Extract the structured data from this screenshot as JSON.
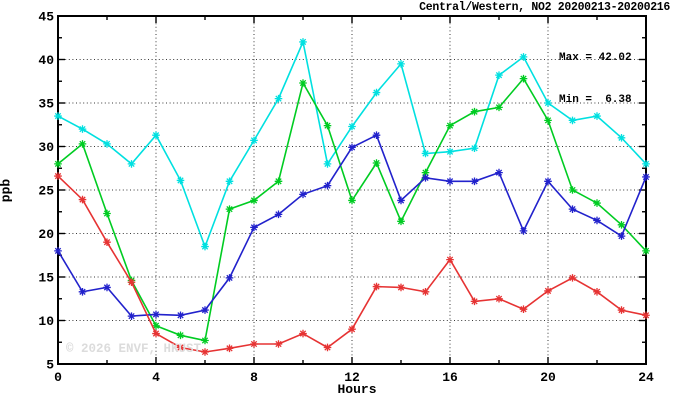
{
  "chart_data": {
    "type": "line",
    "title": "Central/Western, NO2 20200213-20200216",
    "annotations": {
      "max_label": "Max = 42.02",
      "min_label": "Min =  6.38"
    },
    "max": 42.02,
    "min": 6.38,
    "xlabel": "Hours",
    "ylabel": "ppb",
    "xlim": [
      0,
      24
    ],
    "ylim": [
      5,
      45
    ],
    "xticks_major": [
      0,
      4,
      8,
      12,
      16,
      20,
      24
    ],
    "xticks_minor": [
      2,
      6,
      10,
      14,
      18,
      22
    ],
    "yticks_major": [
      5,
      10,
      15,
      20,
      25,
      30,
      35,
      40,
      45
    ],
    "yticks_minor": [
      7.5,
      12.5,
      17.5,
      22.5,
      27.5,
      32.5,
      37.5,
      42.5
    ],
    "grid_x": [
      4,
      8,
      12,
      16,
      20
    ],
    "grid_y": [
      10,
      15,
      20,
      25,
      30,
      35,
      40
    ],
    "grid": true,
    "legend_position": "top-right-inside",
    "watermark": "© 2026 ENVF, HKUST",
    "x": [
      0,
      1,
      2,
      3,
      4,
      5,
      6,
      7,
      8,
      9,
      10,
      11,
      12,
      13,
      14,
      15,
      16,
      17,
      18,
      19,
      20,
      21,
      22,
      23,
      24
    ],
    "series": [
      {
        "name": "cyan-line",
        "color": "#00e0e0",
        "values": [
          33.5,
          32.0,
          30.3,
          28.0,
          31.3,
          26.1,
          18.5,
          26.0,
          30.7,
          35.5,
          42.02,
          28.0,
          32.3,
          36.2,
          39.5,
          29.2,
          29.4,
          29.8,
          38.2,
          40.3,
          35.0,
          33.0,
          33.5,
          31.0,
          28.0
        ]
      },
      {
        "name": "green-line",
        "color": "#00cc22",
        "values": [
          28.0,
          30.3,
          22.3,
          14.6,
          9.4,
          8.3,
          7.7,
          22.8,
          23.8,
          26.0,
          37.3,
          32.4,
          23.8,
          28.1,
          21.4,
          27.0,
          32.4,
          34.0,
          34.5,
          37.8,
          33.0,
          25.0,
          23.5,
          21.0,
          18.0
        ]
      },
      {
        "name": "blue-line",
        "color": "#2222cc",
        "values": [
          18.0,
          13.3,
          13.8,
          10.5,
          10.7,
          10.6,
          11.2,
          14.9,
          20.7,
          22.2,
          24.5,
          25.5,
          29.9,
          31.3,
          23.8,
          26.4,
          26.0,
          26.0,
          27.0,
          20.3,
          26.0,
          22.8,
          21.5,
          19.7,
          26.5
        ]
      },
      {
        "name": "red-line",
        "color": "#e63333",
        "values": [
          26.6,
          23.9,
          19.0,
          14.4,
          8.5,
          6.9,
          6.38,
          6.8,
          7.3,
          7.3,
          8.5,
          6.9,
          9.0,
          13.9,
          13.8,
          13.3,
          17.0,
          12.2,
          12.5,
          11.3,
          13.4,
          14.9,
          13.3,
          11.2,
          10.6
        ]
      }
    ]
  }
}
